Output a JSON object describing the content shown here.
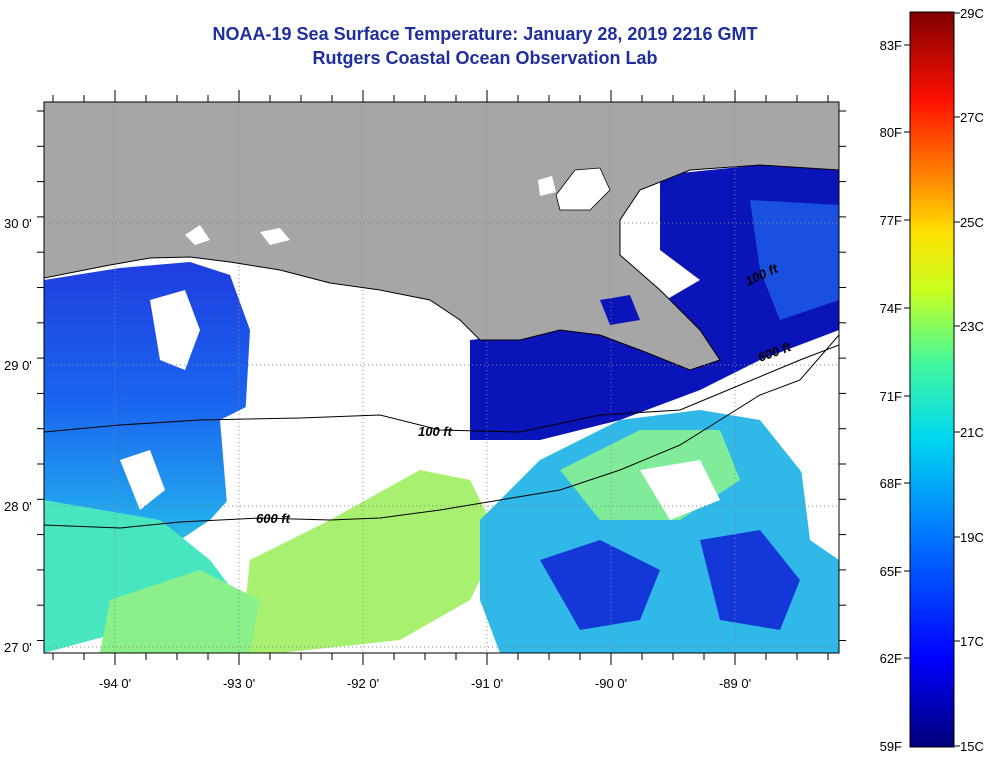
{
  "header": {
    "title": "NOAA-19 Sea Surface Temperature:  January 28, 2019 2216 GMT",
    "subtitle": "Rutgers Coastal Ocean Observation Lab"
  },
  "map": {
    "longitude_ticks": [
      "-94 0'",
      "-93 0'",
      "-92 0'",
      "-91 0'",
      "-90 0'",
      "-89 0'"
    ],
    "latitude_ticks": [
      "30 0'",
      "29 0'",
      "28 0'",
      "27 0'"
    ],
    "isobaths": [
      "100 ft",
      "600 ft",
      "100 ft",
      "600 ft"
    ],
    "colors": {
      "land": "#a6a6a6",
      "no_data": "#ffffff",
      "coastline": "#000000"
    }
  },
  "colorbar": {
    "fahrenheit_labels": [
      "83F",
      "80F",
      "77F",
      "74F",
      "71F",
      "68F",
      "65F",
      "62F",
      "59F"
    ],
    "celsius_labels": [
      "29C",
      "27C",
      "25C",
      "23C",
      "21C",
      "19C",
      "17C",
      "15C"
    ],
    "range_c": [
      15,
      29
    ],
    "colors": [
      "#00007a",
      "#0000ff",
      "#0080ff",
      "#00e0f0",
      "#40ff90",
      "#d0ff20",
      "#ffe000",
      "#ff8000",
      "#ff0000",
      "#800000"
    ]
  }
}
